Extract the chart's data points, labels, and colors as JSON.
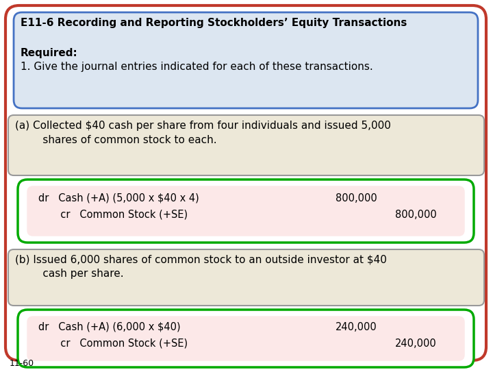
{
  "title": "E11-6 Recording and Reporting Stockholders’ Equity Transactions",
  "required_label": "Required:",
  "required_text": "1. Give the journal entries indicated for each of these transactions.",
  "section_a_line1": "(a) Collected $40 cash per share from four individuals and issued 5,000",
  "section_a_line2": "     shares of common stock to each.",
  "section_a_dr": "dr   Cash (+A) (5,000 x $40 x 4)",
  "section_a_dr_amount": "800,000",
  "section_a_cr": "       cr   Common Stock (+SE)",
  "section_a_cr_amount": "800,000",
  "section_b_line1": "(b) Issued 6,000 shares of common stock to an outside investor at $40",
  "section_b_line2": "     cash per share.",
  "section_b_dr": "dr   Cash (+A) (6,000 x $40)",
  "section_b_dr_amount": "240,000",
  "section_b_cr": "       cr   Common Stock (+SE)",
  "section_b_cr_amount": "240,000",
  "footer": "11-60",
  "outer_bg": "#ffffff",
  "outer_border": "#c0392b",
  "header_bg": "#dce6f1",
  "header_border": "#4472c4",
  "section_ab_bg": "#ede8d8",
  "section_ab_border": "#999999",
  "journal_outer_bg": "#ffffff",
  "journal_border": "#00aa00",
  "journal_inner_bg": "#fce8e8",
  "title_fontsize": 11,
  "body_fontsize": 11,
  "journal_fontsize": 10.5
}
